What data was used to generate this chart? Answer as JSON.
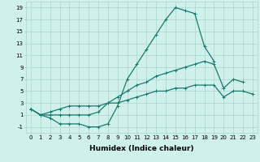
{
  "xlabel": "Humidex (Indice chaleur)",
  "x_values": [
    0,
    1,
    2,
    3,
    4,
    5,
    6,
    7,
    8,
    9,
    10,
    11,
    12,
    13,
    14,
    15,
    16,
    17,
    18,
    19,
    20,
    21,
    22,
    23
  ],
  "line1": [
    2,
    1,
    0.5,
    -0.5,
    -0.5,
    -0.5,
    -1,
    -1,
    -0.5,
    2.5,
    7,
    9.5,
    12,
    14.5,
    17,
    19,
    18.5,
    18,
    12.5,
    10,
    null,
    null,
    null,
    null
  ],
  "line2": [
    2,
    1,
    1,
    1,
    1,
    1,
    1,
    1.5,
    3,
    4,
    5,
    6,
    6.5,
    7.5,
    8,
    8.5,
    9,
    9.5,
    10,
    9.5,
    5.5,
    7,
    6.5,
    null
  ],
  "line3": [
    2,
    1,
    1.5,
    2,
    2.5,
    2.5,
    2.5,
    2.5,
    3,
    3,
    3.5,
    4,
    4.5,
    5,
    5,
    5.5,
    5.5,
    6,
    6,
    6,
    4,
    5,
    5,
    4.5
  ],
  "line_color": "#1a7a6e",
  "bg_color": "#cff0eb",
  "grid_color": "#aad4cc",
  "ylim": [
    -2,
    20
  ],
  "xlim": [
    -0.5,
    23.5
  ],
  "yticks": [
    -1,
    1,
    3,
    5,
    7,
    9,
    11,
    13,
    15,
    17,
    19
  ],
  "xticks": [
    0,
    1,
    2,
    3,
    4,
    5,
    6,
    7,
    8,
    9,
    10,
    11,
    12,
    13,
    14,
    15,
    16,
    17,
    18,
    19,
    20,
    21,
    22,
    23
  ],
  "marker": "+",
  "markersize": 3,
  "linewidth": 0.9,
  "tick_fontsize": 5.0,
  "xlabel_fontsize": 6.5
}
